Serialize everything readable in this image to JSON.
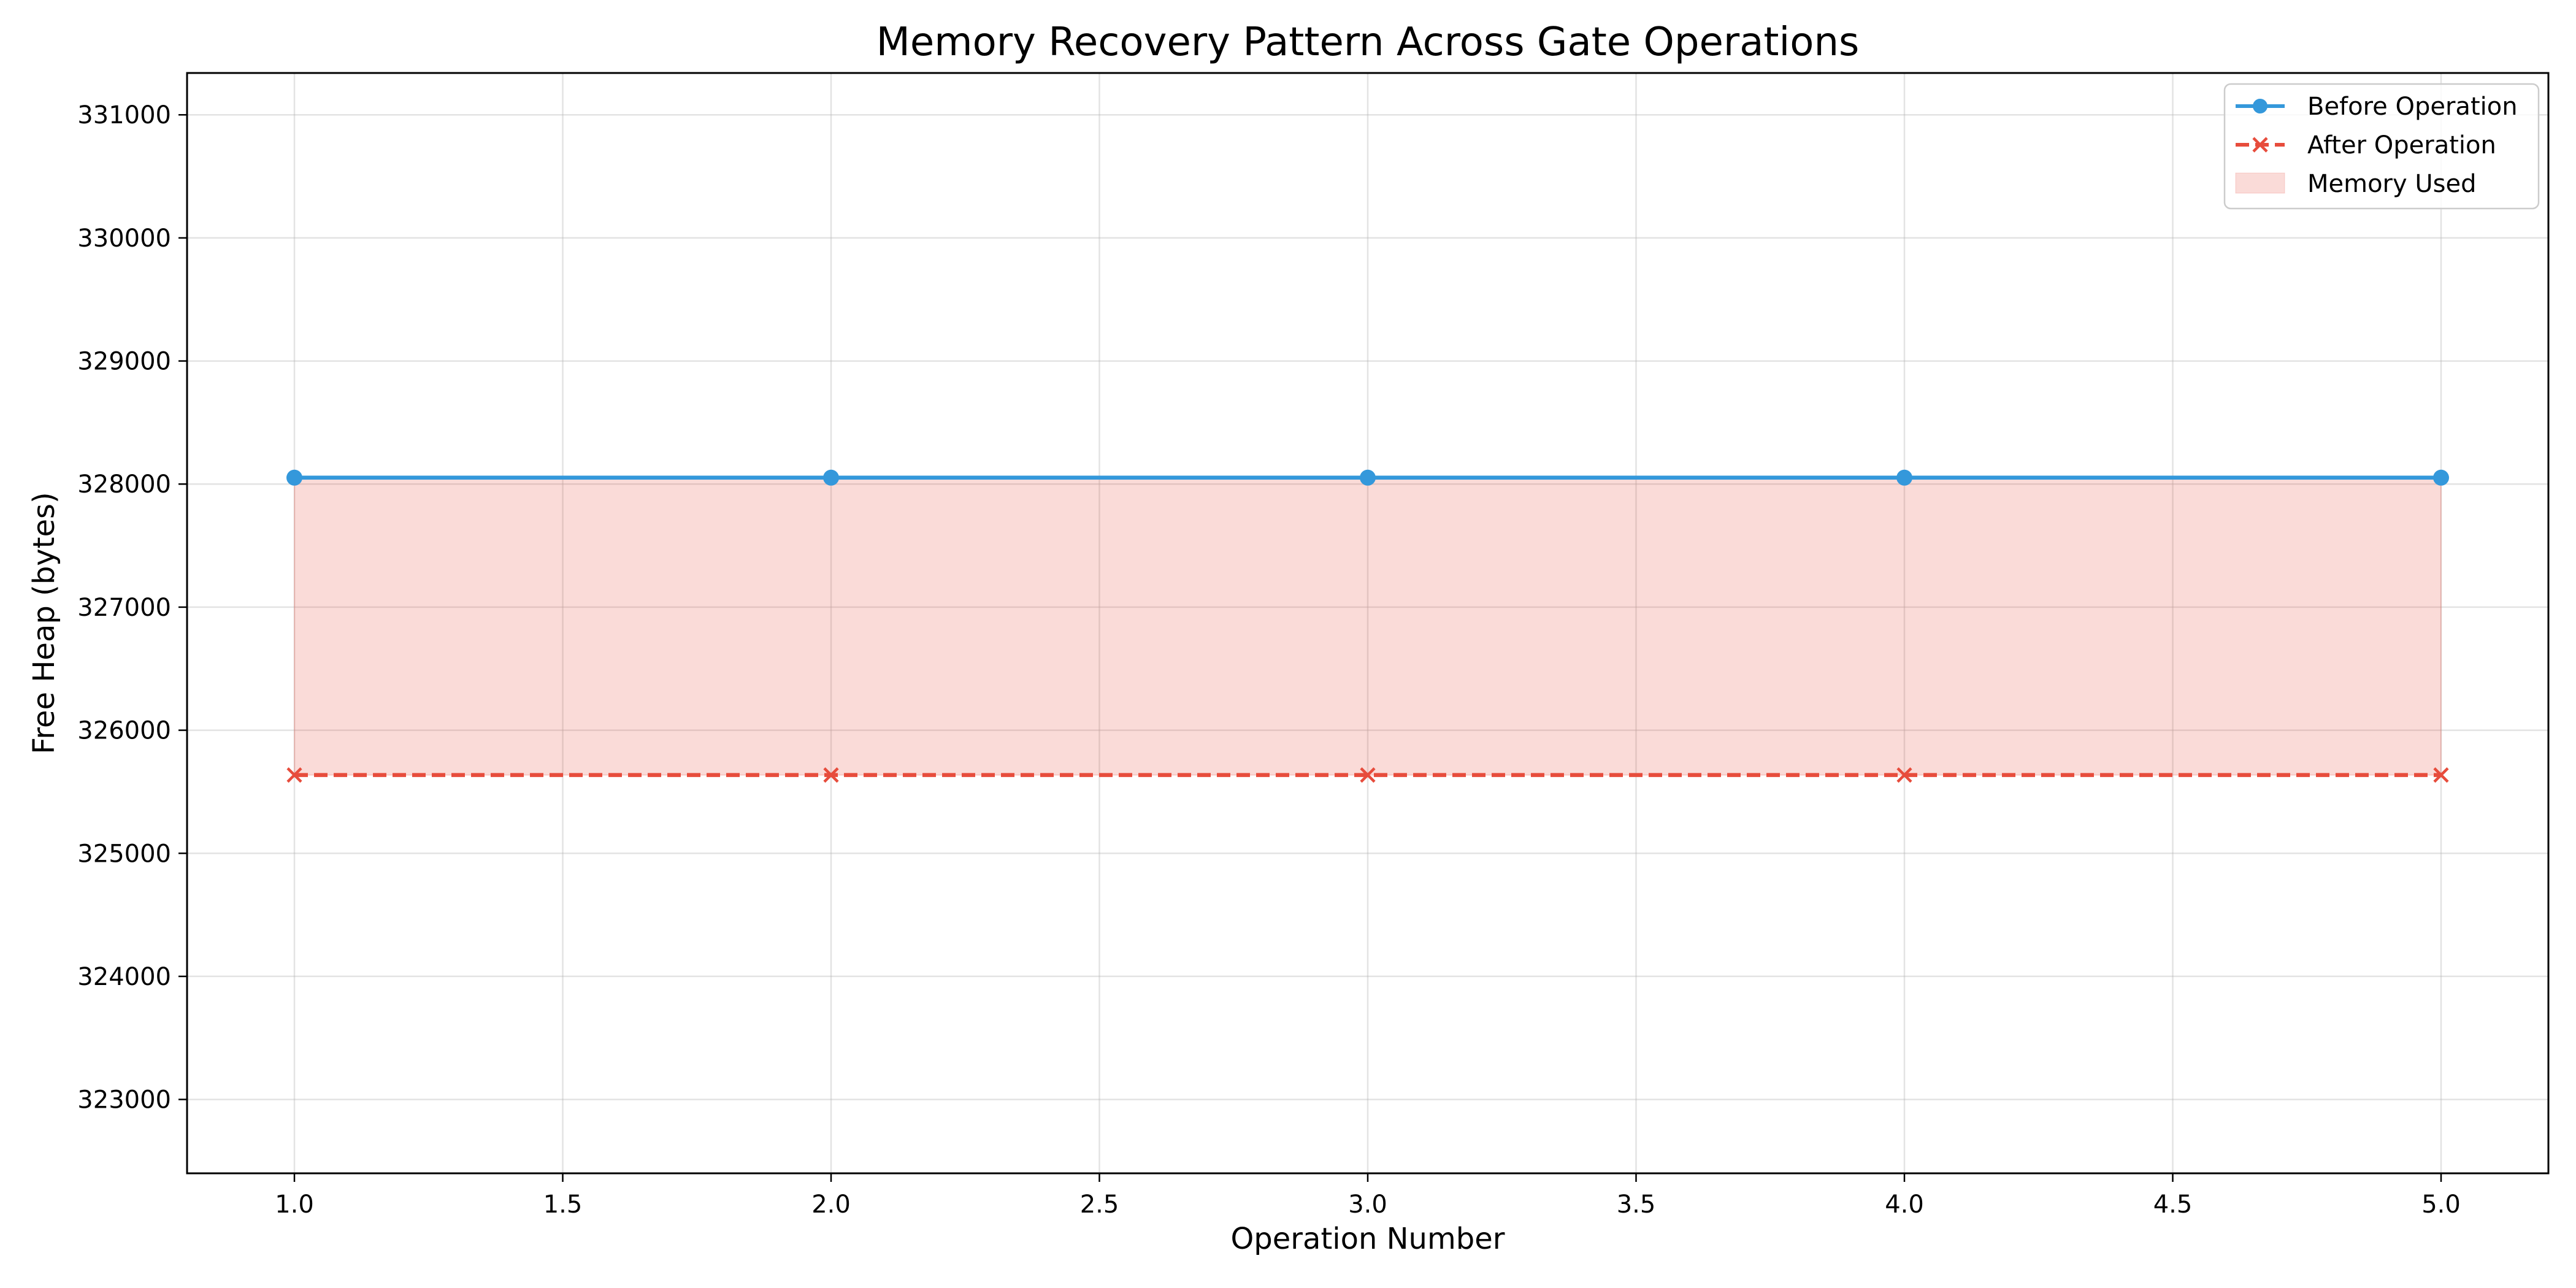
{
  "chart_data": {
    "type": "line",
    "title": "Memory Recovery Pattern Across Gate Operations",
    "xlabel": "Operation Number",
    "ylabel": "Free Heap (bytes)",
    "x": [
      1,
      2,
      3,
      4,
      5
    ],
    "xlim": [
      0.8,
      5.2
    ],
    "ylim": [
      322400,
      331340
    ],
    "x_ticks": [
      1.0,
      1.5,
      2.0,
      2.5,
      3.0,
      3.5,
      4.0,
      4.5,
      5.0
    ],
    "x_tick_labels": [
      "1.0",
      "1.5",
      "2.0",
      "2.5",
      "3.0",
      "3.5",
      "4.0",
      "4.5",
      "5.0"
    ],
    "y_ticks": [
      323000,
      324000,
      325000,
      326000,
      327000,
      328000,
      329000,
      330000,
      331000
    ],
    "y_tick_labels": [
      "323000",
      "324000",
      "325000",
      "326000",
      "327000",
      "328000",
      "329000",
      "330000",
      "331000"
    ],
    "grid": true,
    "legend_position": "top-right",
    "series": [
      {
        "name": "Before Operation",
        "values": [
          328052,
          328052,
          328052,
          328052,
          328052
        ],
        "color": "#3498db",
        "line_style": "solid",
        "marker": "circle"
      },
      {
        "name": "After Operation",
        "values": [
          325636,
          325636,
          325636,
          325636,
          325636
        ],
        "color": "#e74c3c",
        "line_style": "dashed",
        "marker": "x"
      }
    ],
    "fill": {
      "name": "Memory Used",
      "between": [
        "Before Operation",
        "After Operation"
      ],
      "color": "#e74c3c",
      "opacity": 0.2
    }
  }
}
